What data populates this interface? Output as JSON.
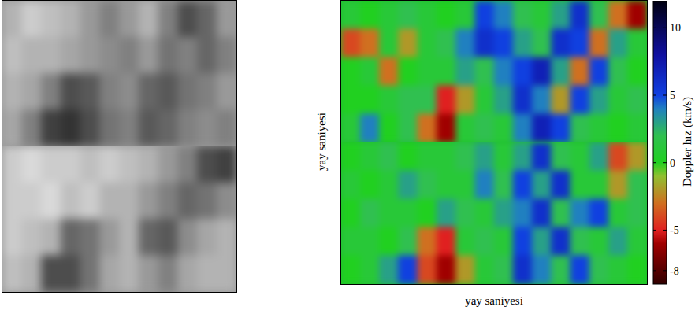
{
  "chart_data": [
    {
      "type": "image",
      "color": "gray",
      "cells": [
        [
          [
            0.7,
            0.8,
            0.75,
            0.7,
            0.6,
            0.5,
            0.6,
            0.7,
            0.5,
            0.3,
            0.4,
            0.6
          ],
          [
            0.75,
            0.7,
            0.7,
            0.65,
            0.6,
            0.55,
            0.5,
            0.6,
            0.45,
            0.5,
            0.4,
            0.5
          ],
          [
            0.7,
            0.65,
            0.5,
            0.3,
            0.35,
            0.5,
            0.55,
            0.4,
            0.35,
            0.45,
            0.5,
            0.6
          ],
          [
            0.65,
            0.5,
            0.25,
            0.2,
            0.3,
            0.45,
            0.5,
            0.35,
            0.4,
            0.5,
            0.55,
            0.5
          ]
        ],
        [
          [
            0.8,
            0.85,
            0.8,
            0.8,
            0.75,
            0.8,
            0.75,
            0.7,
            0.6,
            0.5,
            0.3,
            0.25
          ],
          [
            0.8,
            0.8,
            0.85,
            0.75,
            0.8,
            0.7,
            0.7,
            0.6,
            0.5,
            0.4,
            0.45,
            0.55
          ],
          [
            0.8,
            0.75,
            0.7,
            0.4,
            0.45,
            0.6,
            0.7,
            0.4,
            0.35,
            0.55,
            0.65,
            0.7
          ],
          [
            0.75,
            0.7,
            0.3,
            0.3,
            0.45,
            0.65,
            0.7,
            0.6,
            0.5,
            0.65,
            0.7,
            0.7
          ]
        ]
      ]
    },
    {
      "type": "heatmap",
      "x_label": "yay saniyesi",
      "y_label": "yay saniyesi",
      "tick_labels": false,
      "cells": [
        [
          [
            1,
            0,
            1,
            2,
            1,
            0,
            1,
            5,
            4,
            2,
            1,
            3,
            6,
            2,
            -3,
            -6
          ],
          [
            -4,
            -3,
            1,
            -2,
            1,
            2,
            4,
            6,
            5,
            3,
            2,
            6,
            5,
            -3,
            3,
            1
          ],
          [
            0,
            1,
            -3,
            0,
            1,
            1,
            3,
            2,
            4,
            5,
            7,
            3,
            -3,
            5,
            2,
            0
          ],
          [
            0,
            0,
            1,
            2,
            2,
            -5,
            -2,
            1,
            3,
            6,
            4,
            -2,
            5,
            3,
            1,
            2
          ],
          [
            1,
            4,
            0,
            2,
            -3,
            -6,
            1,
            2,
            1,
            4,
            7,
            5,
            2,
            1,
            0,
            1
          ]
        ],
        [
          [
            0,
            1,
            2,
            0,
            1,
            1,
            2,
            3,
            1,
            3,
            6,
            2,
            1,
            3,
            -4,
            -2
          ],
          [
            1,
            0,
            1,
            3,
            2,
            1,
            1,
            4,
            2,
            5,
            3,
            6,
            1,
            1,
            -2,
            2
          ],
          [
            0,
            2,
            1,
            1,
            0,
            3,
            2,
            1,
            3,
            4,
            6,
            2,
            4,
            5,
            1,
            2
          ],
          [
            1,
            1,
            0,
            2,
            -3,
            -5,
            1,
            2,
            1,
            5,
            3,
            6,
            2,
            1,
            3,
            1
          ],
          [
            0,
            1,
            3,
            5,
            -4,
            -6,
            -2,
            1,
            2,
            6,
            4,
            2,
            5,
            2,
            1,
            0
          ]
        ]
      ],
      "colorbar": {
        "label": "Doppler hız (km/s)",
        "range": [
          -9,
          12
        ],
        "ticks": [
          10,
          5,
          0,
          -5,
          -8
        ]
      }
    }
  ]
}
